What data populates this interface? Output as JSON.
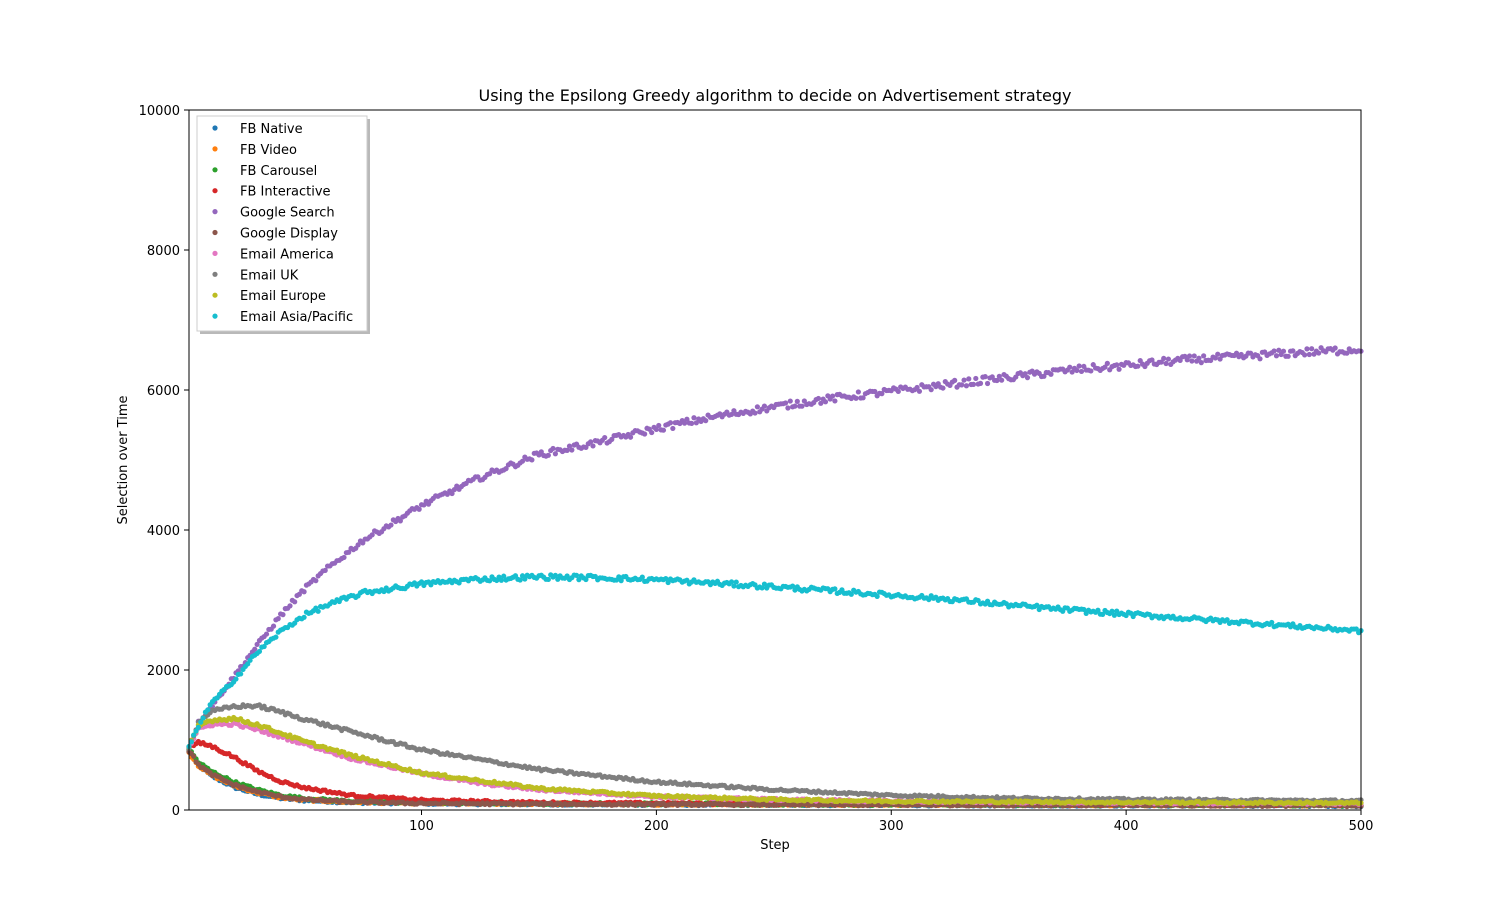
{
  "chart_data": {
    "type": "scatter",
    "title": "Using the Epsilong Greedy algorithm to decide on Advertisement strategy",
    "xlabel": "Step",
    "ylabel": "Selection over Time",
    "xlim": [
      1,
      500
    ],
    "ylim": [
      0,
      10000
    ],
    "xticks": [
      100,
      200,
      300,
      400,
      500
    ],
    "yticks": [
      0,
      2000,
      4000,
      6000,
      8000,
      10000
    ],
    "legend_position": "upper-left",
    "grid": false,
    "series": [
      {
        "name": "FB Native",
        "color": "#1f77b4",
        "points": [
          [
            1,
            850
          ],
          [
            5,
            650
          ],
          [
            10,
            500
          ],
          [
            20,
            330
          ],
          [
            30,
            230
          ],
          [
            40,
            170
          ],
          [
            50,
            140
          ],
          [
            70,
            110
          ],
          [
            100,
            95
          ],
          [
            150,
            85
          ],
          [
            200,
            80
          ],
          [
            300,
            75
          ],
          [
            400,
            70
          ],
          [
            500,
            65
          ]
        ]
      },
      {
        "name": "FB Video",
        "color": "#ff7f0e",
        "points": [
          [
            1,
            820
          ],
          [
            5,
            640
          ],
          [
            10,
            510
          ],
          [
            20,
            350
          ],
          [
            30,
            250
          ],
          [
            40,
            180
          ],
          [
            50,
            145
          ],
          [
            70,
            115
          ],
          [
            100,
            100
          ],
          [
            150,
            90
          ],
          [
            200,
            85
          ],
          [
            300,
            80
          ],
          [
            400,
            75
          ],
          [
            500,
            70
          ]
        ]
      },
      {
        "name": "FB Carousel",
        "color": "#2ca02c",
        "points": [
          [
            1,
            870
          ],
          [
            5,
            680
          ],
          [
            10,
            560
          ],
          [
            20,
            400
          ],
          [
            30,
            290
          ],
          [
            40,
            210
          ],
          [
            50,
            165
          ],
          [
            70,
            125
          ],
          [
            100,
            105
          ],
          [
            150,
            95
          ],
          [
            200,
            90
          ],
          [
            300,
            80
          ],
          [
            400,
            75
          ],
          [
            500,
            70
          ]
        ]
      },
      {
        "name": "FB Interactive",
        "color": "#d62728",
        "points": [
          [
            1,
            900
          ],
          [
            5,
            960
          ],
          [
            10,
            920
          ],
          [
            20,
            760
          ],
          [
            30,
            560
          ],
          [
            40,
            410
          ],
          [
            50,
            320
          ],
          [
            70,
            210
          ],
          [
            100,
            140
          ],
          [
            150,
            105
          ],
          [
            200,
            95
          ],
          [
            300,
            85
          ],
          [
            400,
            80
          ],
          [
            500,
            75
          ]
        ]
      },
      {
        "name": "Google Search",
        "color": "#9467bd",
        "points": [
          [
            1,
            900
          ],
          [
            5,
            1250
          ],
          [
            10,
            1450
          ],
          [
            20,
            1900
          ],
          [
            30,
            2350
          ],
          [
            40,
            2780
          ],
          [
            50,
            3150
          ],
          [
            60,
            3450
          ],
          [
            75,
            3850
          ],
          [
            100,
            4350
          ],
          [
            125,
            4750
          ],
          [
            150,
            5080
          ],
          [
            175,
            5250
          ],
          [
            200,
            5450
          ],
          [
            225,
            5620
          ],
          [
            250,
            5760
          ],
          [
            275,
            5880
          ],
          [
            300,
            5980
          ],
          [
            325,
            6080
          ],
          [
            350,
            6180
          ],
          [
            375,
            6280
          ],
          [
            400,
            6350
          ],
          [
            425,
            6430
          ],
          [
            450,
            6480
          ],
          [
            475,
            6540
          ],
          [
            500,
            6580
          ]
        ]
      },
      {
        "name": "Google Display",
        "color": "#8c564b",
        "points": [
          [
            1,
            850
          ],
          [
            5,
            650
          ],
          [
            10,
            520
          ],
          [
            20,
            360
          ],
          [
            30,
            260
          ],
          [
            40,
            190
          ],
          [
            50,
            150
          ],
          [
            70,
            115
          ],
          [
            100,
            95
          ],
          [
            150,
            85
          ],
          [
            200,
            80
          ],
          [
            300,
            75
          ],
          [
            400,
            70
          ],
          [
            500,
            65
          ]
        ]
      },
      {
        "name": "Email America",
        "color": "#e377c2",
        "points": [
          [
            1,
            900
          ],
          [
            5,
            1150
          ],
          [
            10,
            1220
          ],
          [
            20,
            1230
          ],
          [
            30,
            1150
          ],
          [
            40,
            1050
          ],
          [
            50,
            950
          ],
          [
            70,
            740
          ],
          [
            100,
            520
          ],
          [
            125,
            380
          ],
          [
            150,
            290
          ],
          [
            200,
            190
          ],
          [
            250,
            150
          ],
          [
            300,
            125
          ],
          [
            400,
            105
          ],
          [
            500,
            95
          ]
        ]
      },
      {
        "name": "Email UK",
        "color": "#7f7f7f",
        "points": [
          [
            1,
            900
          ],
          [
            5,
            1250
          ],
          [
            10,
            1400
          ],
          [
            20,
            1480
          ],
          [
            30,
            1490
          ],
          [
            40,
            1400
          ],
          [
            50,
            1300
          ],
          [
            70,
            1120
          ],
          [
            100,
            860
          ],
          [
            125,
            720
          ],
          [
            150,
            580
          ],
          [
            200,
            400
          ],
          [
            250,
            290
          ],
          [
            300,
            210
          ],
          [
            350,
            170
          ],
          [
            400,
            150
          ],
          [
            450,
            140
          ],
          [
            500,
            130
          ]
        ]
      },
      {
        "name": "Email Europe",
        "color": "#bcbd22",
        "points": [
          [
            1,
            900
          ],
          [
            5,
            1200
          ],
          [
            10,
            1280
          ],
          [
            20,
            1310
          ],
          [
            30,
            1220
          ],
          [
            40,
            1100
          ],
          [
            50,
            980
          ],
          [
            70,
            780
          ],
          [
            100,
            530
          ],
          [
            125,
            420
          ],
          [
            150,
            310
          ],
          [
            200,
            200
          ],
          [
            250,
            150
          ],
          [
            300,
            125
          ],
          [
            400,
            110
          ],
          [
            500,
            100
          ]
        ]
      },
      {
        "name": "Email Asia/Pacific",
        "color": "#17becf",
        "points": [
          [
            1,
            900
          ],
          [
            5,
            1200
          ],
          [
            10,
            1500
          ],
          [
            20,
            1850
          ],
          [
            30,
            2250
          ],
          [
            40,
            2550
          ],
          [
            50,
            2780
          ],
          [
            60,
            2930
          ],
          [
            75,
            3100
          ],
          [
            100,
            3230
          ],
          [
            125,
            3300
          ],
          [
            150,
            3330
          ],
          [
            175,
            3320
          ],
          [
            200,
            3290
          ],
          [
            225,
            3240
          ],
          [
            250,
            3190
          ],
          [
            275,
            3130
          ],
          [
            300,
            3070
          ],
          [
            325,
            3010
          ],
          [
            350,
            2930
          ],
          [
            375,
            2860
          ],
          [
            400,
            2800
          ],
          [
            425,
            2740
          ],
          [
            450,
            2680
          ],
          [
            475,
            2620
          ],
          [
            500,
            2560
          ]
        ]
      }
    ]
  }
}
